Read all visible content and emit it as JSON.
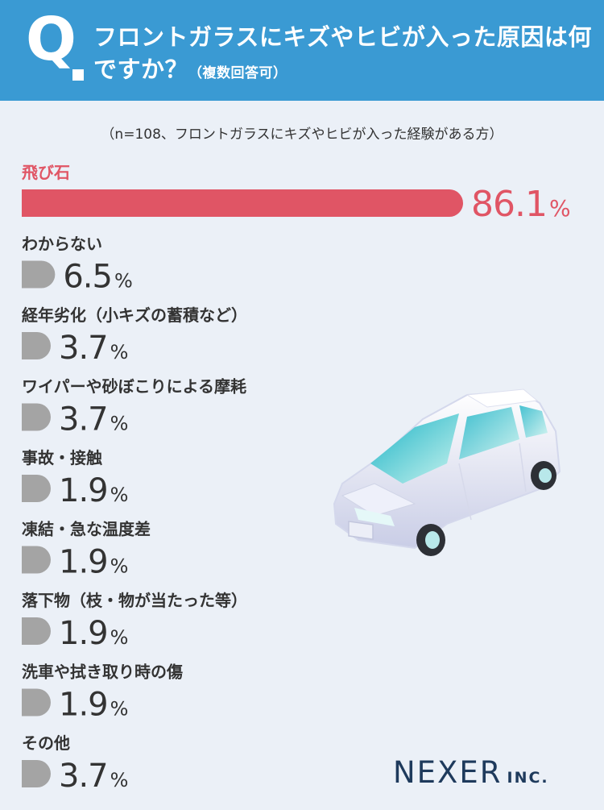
{
  "header": {
    "q_mark": "Q",
    "title": "フロントガラスにキズやヒビが入った原因は何ですか？",
    "title_suffix": "（複数回答可）"
  },
  "note": "（n=108、フロントガラスにキズやヒビが入った経験がある方）",
  "logo": {
    "main": "NEXER",
    "suffix": "INC."
  },
  "colors": {
    "header_bg": "#3a9ad3",
    "background": "#ebf0f7",
    "highlight": "#e05565",
    "bar_default": "#a4a4a4",
    "logo": "#1e3a5c"
  },
  "chart_data": {
    "type": "bar",
    "orientation": "horizontal",
    "unit": "%",
    "categories": [
      "飛び石",
      "わからない",
      "経年劣化（小キズの蓄積など）",
      "ワイパーや砂ぼこりによる摩耗",
      "事故・接触",
      "凍結・急な温度差",
      "落下物（枝・物が当たった等）",
      "洗車や拭き取り時の傷",
      "その他"
    ],
    "values": [
      86.1,
      6.5,
      3.7,
      3.7,
      1.9,
      1.9,
      1.9,
      1.9,
      3.7
    ],
    "value_labels": [
      "86.1",
      "6.5",
      "3.7",
      "3.7",
      "1.9",
      "1.9",
      "1.9",
      "1.9",
      "3.7"
    ],
    "highlight_index": 0
  }
}
